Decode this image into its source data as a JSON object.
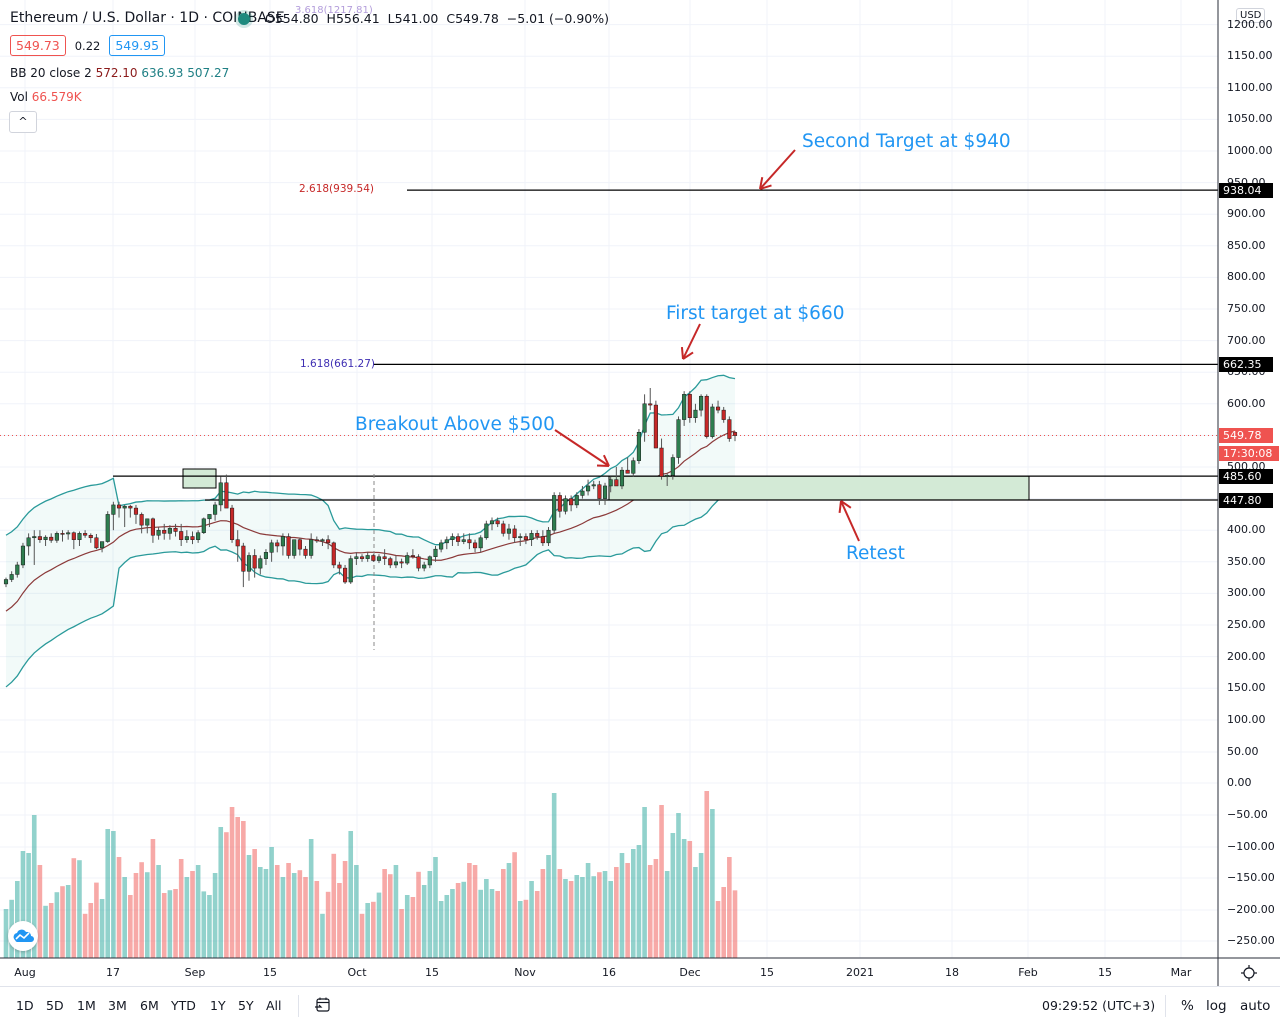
{
  "header": {
    "symbol_title": "Ethereum / U.S. Dollar · 1D · COINBASE",
    "ohlc": {
      "open_label": "O",
      "open": "554.80",
      "high_label": "H",
      "high": "556.41",
      "low_label": "L",
      "low": "541.00",
      "close_label": "C",
      "close": "549.78",
      "change": "−5.01 (−0.90%)"
    },
    "fib_top_label": "3.618(1217.81)",
    "bid": "549.73",
    "spread": "0.22",
    "ask": "549.95",
    "bb_indicator": {
      "name": "BB 20 close 2",
      "basis": "572.10",
      "upper": "636.93",
      "lower": "507.27"
    },
    "vol_indicator": {
      "name": "Vol",
      "value": "66.579K"
    },
    "collapse_icon": "^"
  },
  "currency_badge": "USD",
  "price_axis": {
    "ticks": [
      "1200.00",
      "1150.00",
      "1100.00",
      "1050.00",
      "1000.00",
      "950.00",
      "900.00",
      "850.00",
      "800.00",
      "750.00",
      "700.00",
      "650.00",
      "600.00",
      "550.00",
      "500.00",
      "450.00",
      "400.00",
      "350.00",
      "300.00",
      "250.00",
      "200.00",
      "150.00"
    ],
    "tags": [
      {
        "value": "938.04",
        "color": "#000000"
      },
      {
        "value": "662.35",
        "color": "#000000"
      },
      {
        "value": "549.78",
        "color": "#ef5350"
      },
      {
        "value": "17:30:08",
        "color": "#ef5350"
      },
      {
        "value": "485.60",
        "color": "#000000"
      },
      {
        "value": "447.80",
        "color": "#000000"
      }
    ]
  },
  "volume_axis": {
    "ticks": [
      "100.00",
      "50.00",
      "0.00",
      "−50.00",
      "−100.00",
      "−150.00",
      "−200.00",
      "−250.00"
    ]
  },
  "time_axis": {
    "labels": [
      "Aug",
      "17",
      "Sep",
      "15",
      "Oct",
      "15",
      "Nov",
      "16",
      "Dec",
      "15",
      "2021",
      "18",
      "Feb",
      "15",
      "Mar"
    ]
  },
  "annotations": {
    "second_target": "Second Target at $940",
    "first_target": "First target at $660",
    "breakout": "Breakout Above $500",
    "retest": "Retest",
    "fib_2618": "2.618(939.54)",
    "fib_1618": "1.618(661.27)"
  },
  "bottom_bar": {
    "ranges": [
      "1D",
      "5D",
      "1M",
      "3M",
      "6M",
      "YTD",
      "1Y",
      "5Y",
      "All"
    ],
    "clock": "09:29:52 (UTC+3)",
    "percent_label": "%",
    "log_label": "log",
    "auto_label": "auto"
  },
  "colors": {
    "up": "#26a69a",
    "down": "#ef5350",
    "candle_up_fill": "#2e7d4f",
    "candle_down_fill": "#c62828",
    "bb_band": "#26a69a",
    "bb_basis": "#8b3a3a",
    "annotation_text": "#2196f3",
    "annotation_arrow": "#c62828",
    "zone_fill": "#d3ead6"
  },
  "chart_data": {
    "type": "candlestick",
    "title": "Ethereum / U.S. Dollar · 1D · COINBASE",
    "xlabel": "",
    "ylabel": "USD",
    "ylim": [
      150,
      1230
    ],
    "grid": true,
    "x_start": "Jul 30 2020",
    "ohlc": [
      [
        315,
        325,
        310,
        322
      ],
      [
        322,
        335,
        318,
        330
      ],
      [
        330,
        350,
        325,
        345
      ],
      [
        345,
        380,
        340,
        375
      ],
      [
        375,
        395,
        360,
        388
      ],
      [
        388,
        400,
        345,
        390
      ],
      [
        390,
        400,
        380,
        385
      ],
      [
        385,
        392,
        375,
        389
      ],
      [
        389,
        395,
        380,
        384
      ],
      [
        384,
        398,
        380,
        395
      ],
      [
        395,
        400,
        382,
        394
      ],
      [
        394,
        400,
        385,
        396
      ],
      [
        396,
        398,
        370,
        385
      ],
      [
        385,
        398,
        375,
        395
      ],
      [
        395,
        400,
        388,
        392
      ],
      [
        392,
        395,
        380,
        388
      ],
      [
        388,
        394,
        370,
        372
      ],
      [
        372,
        375,
        365,
        382
      ],
      [
        382,
        430,
        380,
        425
      ],
      [
        425,
        445,
        400,
        440
      ],
      [
        440,
        445,
        420,
        435
      ],
      [
        435,
        440,
        405,
        438
      ],
      [
        438,
        440,
        420,
        435
      ],
      [
        435,
        440,
        410,
        425
      ],
      [
        425,
        428,
        395,
        408
      ],
      [
        408,
        418,
        395,
        418
      ],
      [
        418,
        420,
        380,
        392
      ],
      [
        392,
        405,
        385,
        400
      ],
      [
        400,
        410,
        385,
        395
      ],
      [
        395,
        408,
        385,
        403
      ],
      [
        403,
        410,
        390,
        398
      ],
      [
        398,
        410,
        375,
        385
      ],
      [
        385,
        400,
        380,
        390
      ],
      [
        390,
        398,
        378,
        385
      ],
      [
        385,
        400,
        380,
        396
      ],
      [
        396,
        420,
        394,
        418
      ],
      [
        418,
        425,
        405,
        425
      ],
      [
        425,
        445,
        415,
        440
      ],
      [
        440,
        485,
        430,
        475
      ],
      [
        475,
        488,
        440,
        435
      ],
      [
        435,
        440,
        380,
        385
      ],
      [
        385,
        400,
        350,
        375
      ],
      [
        375,
        380,
        310,
        335
      ],
      [
        335,
        365,
        320,
        360
      ],
      [
        360,
        370,
        325,
        340
      ],
      [
        340,
        360,
        330,
        355
      ],
      [
        355,
        370,
        345,
        365
      ],
      [
        365,
        385,
        350,
        380
      ],
      [
        380,
        385,
        365,
        375
      ],
      [
        375,
        395,
        360,
        390
      ],
      [
        390,
        395,
        355,
        360
      ],
      [
        360,
        385,
        355,
        385
      ],
      [
        385,
        388,
        360,
        370
      ],
      [
        370,
        375,
        355,
        360
      ],
      [
        360,
        395,
        355,
        385
      ],
      [
        385,
        390,
        380,
        383
      ],
      [
        383,
        387,
        375,
        385
      ],
      [
        385,
        392,
        370,
        380
      ],
      [
        380,
        382,
        340,
        345
      ],
      [
        345,
        350,
        330,
        340
      ],
      [
        340,
        345,
        315,
        318
      ],
      [
        318,
        360,
        315,
        355
      ],
      [
        355,
        365,
        345,
        358
      ],
      [
        358,
        362,
        350,
        355
      ],
      [
        355,
        365,
        350,
        360
      ],
      [
        360,
        362,
        350,
        352
      ],
      [
        352,
        362,
        348,
        358
      ],
      [
        358,
        370,
        345,
        355
      ],
      [
        355,
        358,
        340,
        345
      ],
      [
        345,
        360,
        340,
        350
      ],
      [
        350,
        355,
        340,
        348
      ],
      [
        348,
        365,
        345,
        360
      ],
      [
        360,
        370,
        355,
        358
      ],
      [
        358,
        362,
        335,
        340
      ],
      [
        340,
        350,
        335,
        345
      ],
      [
        345,
        360,
        340,
        358
      ],
      [
        358,
        375,
        350,
        370
      ],
      [
        370,
        385,
        365,
        380
      ],
      [
        380,
        390,
        370,
        385
      ],
      [
        385,
        395,
        375,
        390
      ],
      [
        390,
        395,
        375,
        382
      ],
      [
        382,
        395,
        378,
        385
      ],
      [
        385,
        395,
        370,
        380
      ],
      [
        380,
        385,
        365,
        372
      ],
      [
        372,
        392,
        365,
        388
      ],
      [
        388,
        415,
        385,
        410
      ],
      [
        410,
        420,
        400,
        415
      ],
      [
        415,
        420,
        405,
        410
      ],
      [
        410,
        415,
        390,
        395
      ],
      [
        395,
        410,
        385,
        402
      ],
      [
        402,
        408,
        380,
        388
      ],
      [
        388,
        395,
        375,
        390
      ],
      [
        390,
        395,
        378,
        385
      ],
      [
        385,
        400,
        375,
        395
      ],
      [
        395,
        400,
        385,
        390
      ],
      [
        390,
        400,
        375,
        380
      ],
      [
        380,
        405,
        375,
        400
      ],
      [
        400,
        460,
        395,
        455
      ],
      [
        455,
        460,
        420,
        430
      ],
      [
        430,
        455,
        425,
        450
      ],
      [
        450,
        455,
        430,
        440
      ],
      [
        440,
        460,
        435,
        455
      ],
      [
        455,
        470,
        450,
        462
      ],
      [
        462,
        480,
        455,
        470
      ],
      [
        470,
        478,
        465,
        472
      ],
      [
        472,
        478,
        440,
        450
      ],
      [
        450,
        475,
        440,
        470
      ],
      [
        470,
        485,
        460,
        480
      ],
      [
        480,
        500,
        470,
        470
      ],
      [
        470,
        500,
        465,
        495
      ],
      [
        495,
        515,
        490,
        490
      ],
      [
        490,
        515,
        485,
        510
      ],
      [
        510,
        560,
        505,
        555
      ],
      [
        555,
        615,
        540,
        600
      ],
      [
        600,
        625,
        590,
        598
      ],
      [
        598,
        605,
        570,
        530
      ],
      [
        530,
        545,
        480,
        485
      ],
      [
        485,
        490,
        470,
        487
      ],
      [
        487,
        520,
        480,
        515
      ],
      [
        515,
        580,
        505,
        575
      ],
      [
        575,
        620,
        565,
        615
      ],
      [
        615,
        620,
        570,
        578
      ],
      [
        578,
        600,
        570,
        590
      ],
      [
        590,
        615,
        580,
        612
      ],
      [
        612,
        615,
        545,
        548
      ],
      [
        548,
        600,
        545,
        595
      ],
      [
        595,
        605,
        585,
        590
      ],
      [
        590,
        595,
        570,
        575
      ],
      [
        575,
        580,
        540,
        545
      ],
      [
        554.8,
        556.41,
        541,
        549.78
      ]
    ],
    "volume_scale_labels_range": [
      -260,
      110
    ],
    "volume_direction_note": "green = up day, red = down day",
    "horizontal_levels": [
      {
        "label": "2.618(939.54)",
        "value": 939.54
      },
      {
        "label": "1.618(661.27)",
        "value": 661.27
      },
      {
        "label": "485.60",
        "value": 485.6
      },
      {
        "label": "447.80",
        "value": 447.8
      }
    ],
    "zone": {
      "from": 447.8,
      "to": 485.6,
      "label": "Retest"
    },
    "bollinger": {
      "period": 20,
      "mult": 2,
      "basis": 572.1,
      "upper": 636.93,
      "lower": 507.27
    },
    "last_close": 549.78
  }
}
